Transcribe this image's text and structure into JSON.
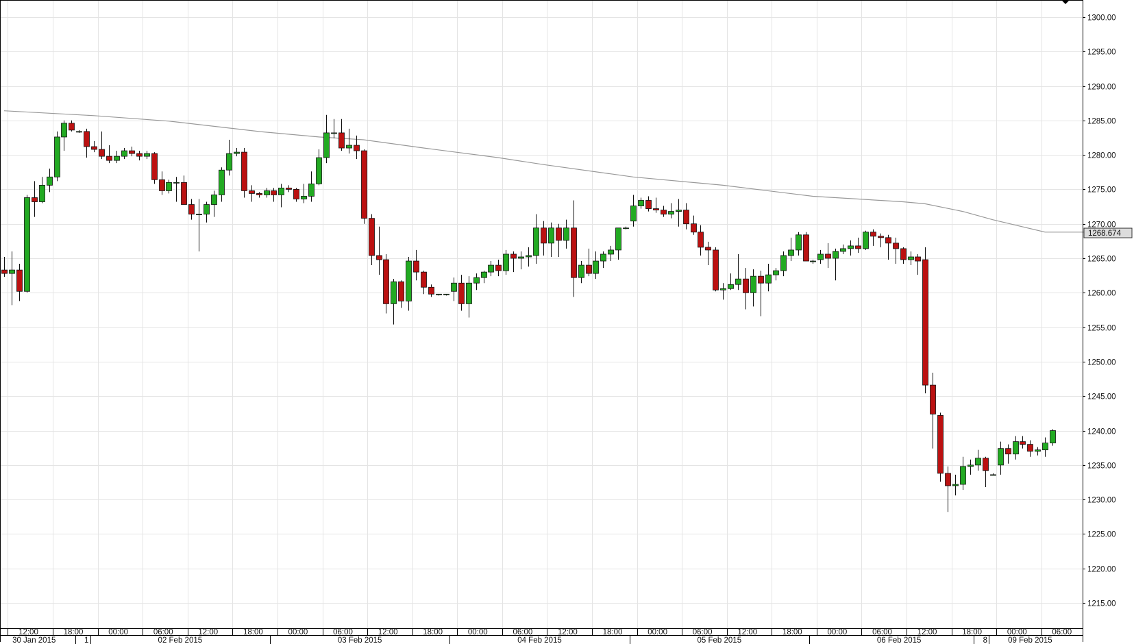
{
  "chart_data": {
    "type": "candlestick",
    "y_axis": {
      "min": 1211,
      "max": 1302,
      "side": "right",
      "ticks": [
        "1215.00",
        "1220.00",
        "1225.00",
        "1230.00",
        "1235.00",
        "1240.00",
        "1245.00",
        "1250.00",
        "1255.00",
        "1260.00",
        "1265.00",
        "1270.00",
        "1275.00",
        "1280.00",
        "1285.00",
        "1290.00",
        "1295.00",
        "1300.00"
      ]
    },
    "x_axis": {
      "interval": "1 hour",
      "time_labels": [
        {
          "bar": 1,
          "label": "12:00"
        },
        {
          "bar": 7,
          "label": "18:00"
        },
        {
          "bar": 13,
          "label": "00:00"
        },
        {
          "bar": 19,
          "label": "06:00"
        },
        {
          "bar": 25,
          "label": "12:00"
        },
        {
          "bar": 31,
          "label": "18:00"
        },
        {
          "bar": 37,
          "label": "00:00"
        },
        {
          "bar": 43,
          "label": "06:00"
        },
        {
          "bar": 49,
          "label": "12:00"
        },
        {
          "bar": 55,
          "label": "18:00"
        },
        {
          "bar": 61,
          "label": "00:00"
        },
        {
          "bar": 67,
          "label": "06:00"
        },
        {
          "bar": 73,
          "label": "12:00"
        },
        {
          "bar": 79,
          "label": "18:00"
        },
        {
          "bar": 85,
          "label": "00:00"
        },
        {
          "bar": 91,
          "label": "06:00"
        },
        {
          "bar": 97,
          "label": "12:00"
        },
        {
          "bar": 103,
          "label": "18:00"
        },
        {
          "bar": 109,
          "label": "00:00"
        },
        {
          "bar": 115,
          "label": "06:00"
        },
        {
          "bar": 121,
          "label": "12:00"
        },
        {
          "bar": 127,
          "label": "18:00"
        },
        {
          "bar": 133,
          "label": "00:00"
        },
        {
          "bar": 139,
          "label": "06:00"
        }
      ],
      "date_labels": [
        {
          "bar": 4,
          "label": "30 Jan 2015"
        },
        {
          "bar": 11,
          "label": "1"
        },
        {
          "bar": 23.5,
          "label": "02 Feb 2015"
        },
        {
          "bar": 47.5,
          "label": "03 Feb 2015"
        },
        {
          "bar": 71.5,
          "label": "04 Feb 2015"
        },
        {
          "bar": 95.5,
          "label": "05 Feb 2015"
        },
        {
          "bar": 119.5,
          "label": "06 Feb 2015"
        },
        {
          "bar": 131,
          "label": "8"
        },
        {
          "bar": 137,
          "label": "09 Feb 2015"
        }
      ],
      "date_separators": [
        10,
        12,
        36,
        60,
        84,
        108,
        130,
        132
      ]
    },
    "candles": [
      [
        1263.3,
        1265.2,
        1262.3,
        1262.8
      ],
      [
        1262.8,
        1266.0,
        1258.2,
        1263.3
      ],
      [
        1263.3,
        1264.2,
        1258.8,
        1260.2
      ],
      [
        1260.2,
        1274.2,
        1260.0,
        1273.8
      ],
      [
        1273.8,
        1276.2,
        1271.0,
        1273.2
      ],
      [
        1273.2,
        1276.8,
        1273.0,
        1275.6
      ],
      [
        1275.6,
        1278.0,
        1274.6,
        1276.8
      ],
      [
        1276.8,
        1283.4,
        1276.2,
        1282.6
      ],
      [
        1282.6,
        1285.0,
        1280.6,
        1284.6
      ],
      [
        1284.6,
        1285.0,
        1283.4,
        1283.6
      ],
      [
        1283.4,
        1283.6,
        1283.2,
        1283.4
      ],
      [
        1283.4,
        1283.8,
        1279.6,
        1281.2
      ],
      [
        1281.2,
        1282.0,
        1280.4,
        1280.8
      ],
      [
        1280.8,
        1283.4,
        1279.4,
        1279.8
      ],
      [
        1279.8,
        1281.4,
        1278.8,
        1279.2
      ],
      [
        1279.2,
        1280.6,
        1278.8,
        1279.8
      ],
      [
        1279.8,
        1281.0,
        1279.4,
        1280.6
      ],
      [
        1280.6,
        1281.2,
        1279.8,
        1280.2
      ],
      [
        1280.2,
        1280.6,
        1279.2,
        1279.8
      ],
      [
        1279.8,
        1280.6,
        1279.4,
        1280.2
      ],
      [
        1280.2,
        1280.4,
        1275.8,
        1276.4
      ],
      [
        1276.4,
        1277.6,
        1274.2,
        1274.8
      ],
      [
        1274.8,
        1276.4,
        1274.4,
        1276.0
      ],
      [
        1276.0,
        1276.8,
        1273.2,
        1276.0
      ],
      [
        1276.0,
        1277.0,
        1272.8,
        1272.8
      ],
      [
        1272.8,
        1273.6,
        1270.6,
        1271.4
      ],
      [
        1271.4,
        1273.6,
        1266.0,
        1271.4
      ],
      [
        1271.4,
        1273.2,
        1270.2,
        1272.8
      ],
      [
        1272.8,
        1274.8,
        1271.0,
        1274.2
      ],
      [
        1274.2,
        1278.2,
        1273.2,
        1277.8
      ],
      [
        1277.8,
        1282.2,
        1277.0,
        1280.2
      ],
      [
        1280.2,
        1281.0,
        1279.8,
        1280.4
      ],
      [
        1280.4,
        1281.0,
        1273.8,
        1274.8
      ],
      [
        1274.8,
        1275.6,
        1273.2,
        1274.4
      ],
      [
        1274.4,
        1274.6,
        1273.8,
        1274.2
      ],
      [
        1274.2,
        1275.2,
        1273.8,
        1274.8
      ],
      [
        1274.8,
        1275.2,
        1273.2,
        1274.2
      ],
      [
        1274.2,
        1275.8,
        1272.4,
        1275.2
      ],
      [
        1275.2,
        1275.6,
        1274.6,
        1275.0
      ],
      [
        1275.0,
        1275.2,
        1273.2,
        1273.6
      ],
      [
        1273.6,
        1275.8,
        1273.0,
        1274.0
      ],
      [
        1274.0,
        1277.6,
        1273.2,
        1275.8
      ],
      [
        1275.8,
        1280.8,
        1275.6,
        1279.6
      ],
      [
        1279.6,
        1285.8,
        1278.8,
        1283.2
      ],
      [
        1283.2,
        1285.2,
        1282.4,
        1283.2
      ],
      [
        1283.2,
        1285.2,
        1280.6,
        1281.0
      ],
      [
        1281.0,
        1283.8,
        1280.2,
        1281.4
      ],
      [
        1281.4,
        1282.8,
        1279.4,
        1280.6
      ],
      [
        1280.6,
        1280.8,
        1270.0,
        1270.8
      ],
      [
        1270.8,
        1271.4,
        1264.0,
        1265.4
      ],
      [
        1265.4,
        1269.6,
        1262.6,
        1264.8
      ],
      [
        1264.8,
        1265.6,
        1257.0,
        1258.4
      ],
      [
        1258.4,
        1262.0,
        1255.4,
        1261.6
      ],
      [
        1261.6,
        1261.8,
        1257.8,
        1258.8
      ],
      [
        1258.8,
        1265.2,
        1257.4,
        1264.6
      ],
      [
        1264.6,
        1266.2,
        1261.8,
        1263.0
      ],
      [
        1263.0,
        1263.2,
        1259.8,
        1260.8
      ],
      [
        1260.8,
        1261.2,
        1259.4,
        1259.8
      ],
      [
        1259.8,
        1259.8,
        1259.6,
        1259.8
      ],
      [
        1259.8,
        1259.8,
        1259.6,
        1259.8
      ],
      [
        1260.2,
        1262.2,
        1258.8,
        1261.4
      ],
      [
        1261.4,
        1262.6,
        1257.4,
        1258.4
      ],
      [
        1258.4,
        1262.4,
        1256.4,
        1261.4
      ],
      [
        1261.4,
        1262.8,
        1260.4,
        1262.2
      ],
      [
        1262.2,
        1263.2,
        1261.4,
        1263.0
      ],
      [
        1263.0,
        1264.6,
        1262.4,
        1264.0
      ],
      [
        1264.0,
        1264.8,
        1262.4,
        1263.2
      ],
      [
        1263.2,
        1266.2,
        1262.6,
        1265.6
      ],
      [
        1265.6,
        1266.0,
        1263.0,
        1265.0
      ],
      [
        1265.0,
        1266.0,
        1263.4,
        1265.2
      ],
      [
        1265.2,
        1266.6,
        1263.8,
        1265.4
      ],
      [
        1265.4,
        1271.4,
        1264.2,
        1269.4
      ],
      [
        1269.4,
        1270.4,
        1265.4,
        1267.2
      ],
      [
        1267.2,
        1270.2,
        1265.2,
        1269.4
      ],
      [
        1269.4,
        1270.0,
        1265.2,
        1267.6
      ],
      [
        1267.6,
        1270.6,
        1266.4,
        1269.4
      ],
      [
        1269.4,
        1273.4,
        1259.4,
        1262.2
      ],
      [
        1262.2,
        1264.6,
        1261.4,
        1264.0
      ],
      [
        1264.0,
        1266.4,
        1262.4,
        1262.8
      ],
      [
        1262.8,
        1266.0,
        1262.0,
        1264.6
      ],
      [
        1264.6,
        1266.0,
        1263.6,
        1265.6
      ],
      [
        1265.6,
        1266.8,
        1264.6,
        1266.2
      ],
      [
        1266.2,
        1269.4,
        1264.8,
        1269.4
      ],
      [
        1269.4,
        1269.6,
        1269.2,
        1269.4
      ],
      [
        1270.4,
        1274.2,
        1269.6,
        1272.6
      ],
      [
        1272.6,
        1273.8,
        1272.2,
        1273.4
      ],
      [
        1273.4,
        1274.0,
        1271.8,
        1272.2
      ],
      [
        1272.2,
        1273.8,
        1271.6,
        1272.0
      ],
      [
        1272.0,
        1272.6,
        1271.0,
        1271.4
      ],
      [
        1271.4,
        1273.0,
        1270.8,
        1271.8
      ],
      [
        1271.8,
        1273.6,
        1269.6,
        1272.0
      ],
      [
        1272.0,
        1273.0,
        1269.2,
        1270.0
      ],
      [
        1270.0,
        1271.2,
        1268.4,
        1268.8
      ],
      [
        1268.8,
        1269.8,
        1265.4,
        1266.6
      ],
      [
        1266.6,
        1267.4,
        1264.0,
        1266.2
      ],
      [
        1266.2,
        1266.6,
        1260.2,
        1260.4
      ],
      [
        1260.4,
        1261.4,
        1259.0,
        1260.6
      ],
      [
        1260.6,
        1262.8,
        1260.4,
        1261.2
      ],
      [
        1261.2,
        1265.6,
        1260.4,
        1262.0
      ],
      [
        1262.0,
        1263.6,
        1257.6,
        1260.0
      ],
      [
        1260.0,
        1263.4,
        1258.0,
        1262.4
      ],
      [
        1262.4,
        1263.2,
        1256.6,
        1261.4
      ],
      [
        1261.4,
        1264.2,
        1260.2,
        1262.6
      ],
      [
        1262.6,
        1263.6,
        1261.8,
        1263.2
      ],
      [
        1263.2,
        1266.0,
        1262.4,
        1265.4
      ],
      [
        1265.4,
        1268.0,
        1264.6,
        1266.2
      ],
      [
        1266.2,
        1268.8,
        1265.4,
        1268.4
      ],
      [
        1268.4,
        1268.8,
        1264.6,
        1264.6
      ],
      [
        1264.6,
        1264.8,
        1264.2,
        1264.6
      ],
      [
        1264.8,
        1266.2,
        1264.2,
        1265.6
      ],
      [
        1265.6,
        1267.2,
        1263.6,
        1265.0
      ],
      [
        1265.0,
        1266.4,
        1261.8,
        1266.0
      ],
      [
        1266.0,
        1267.0,
        1265.6,
        1266.4
      ],
      [
        1266.4,
        1267.6,
        1265.4,
        1266.8
      ],
      [
        1266.8,
        1268.0,
        1265.8,
        1266.4
      ],
      [
        1266.4,
        1269.0,
        1266.2,
        1268.8
      ],
      [
        1268.8,
        1269.2,
        1266.8,
        1268.2
      ],
      [
        1268.2,
        1268.6,
        1266.6,
        1268.0
      ],
      [
        1268.0,
        1268.4,
        1264.8,
        1267.2
      ],
      [
        1267.2,
        1268.0,
        1264.2,
        1266.4
      ],
      [
        1266.4,
        1266.6,
        1264.2,
        1264.8
      ],
      [
        1264.8,
        1266.0,
        1264.0,
        1265.2
      ],
      [
        1265.2,
        1265.6,
        1262.6,
        1264.6
      ],
      [
        1264.8,
        1266.6,
        1245.4,
        1246.6
      ],
      [
        1246.6,
        1248.4,
        1237.4,
        1242.4
      ],
      [
        1242.2,
        1242.6,
        1232.6,
        1233.8
      ],
      [
        1233.8,
        1234.8,
        1228.2,
        1232.0
      ],
      [
        1232.0,
        1233.6,
        1230.6,
        1232.2
      ],
      [
        1232.2,
        1236.2,
        1231.4,
        1234.8
      ],
      [
        1234.8,
        1235.8,
        1233.6,
        1235.0
      ],
      [
        1235.0,
        1237.2,
        1234.2,
        1236.0
      ],
      [
        1236.0,
        1236.2,
        1231.8,
        1234.2
      ],
      [
        1233.6,
        1233.8,
        1233.6,
        1233.6
      ],
      [
        1235.0,
        1238.4,
        1233.6,
        1237.4
      ],
      [
        1237.4,
        1238.0,
        1235.2,
        1236.6
      ],
      [
        1236.6,
        1239.2,
        1235.8,
        1238.4
      ],
      [
        1238.4,
        1239.2,
        1237.4,
        1238.0
      ],
      [
        1238.0,
        1238.6,
        1236.2,
        1237.0
      ],
      [
        1237.0,
        1237.6,
        1236.4,
        1237.2
      ],
      [
        1237.2,
        1239.0,
        1236.2,
        1238.2
      ],
      [
        1238.2,
        1240.2,
        1237.8,
        1240.0
      ]
    ],
    "moving_average": {
      "anchors": [
        [
          0,
          1286.4
        ],
        [
          12,
          1285.7
        ],
        [
          22,
          1284.9
        ],
        [
          34,
          1283.4
        ],
        [
          42,
          1282.6
        ],
        [
          48,
          1282.2
        ],
        [
          56,
          1281.0
        ],
        [
          66,
          1279.6
        ],
        [
          72,
          1278.6
        ],
        [
          84,
          1276.8
        ],
        [
          96,
          1275.6
        ],
        [
          108,
          1274.0
        ],
        [
          120,
          1273.2
        ],
        [
          123,
          1272.9
        ],
        [
          128,
          1271.8
        ],
        [
          132,
          1270.6
        ],
        [
          139,
          1268.8
        ],
        [
          146,
          1268.8
        ]
      ]
    },
    "last_price": "1268.674",
    "colors": {
      "up": "#22aa22",
      "down": "#bb1111",
      "wick": "#111111",
      "ma_line": "#999999",
      "grid": "#e4e4e4",
      "axis": "#000000"
    }
  }
}
